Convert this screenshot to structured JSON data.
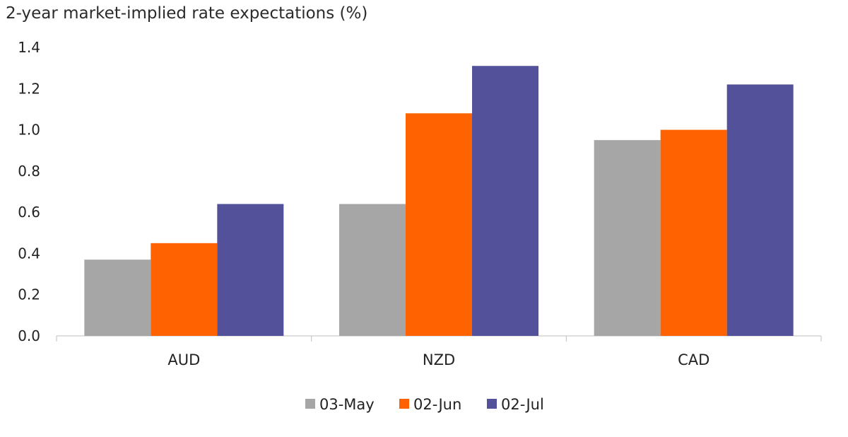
{
  "chart_data": {
    "type": "bar",
    "title": "2-year market-implied rate expectations (%)",
    "xlabel": "",
    "ylabel": "",
    "categories": [
      "AUD",
      "NZD",
      "CAD"
    ],
    "series": [
      {
        "name": "03-May",
        "color": "#a6a6a6",
        "values": [
          0.37,
          0.64,
          0.95
        ]
      },
      {
        "name": "02-Jun",
        "color": "#ff6200",
        "values": [
          0.45,
          1.08,
          1.0
        ]
      },
      {
        "name": "02-Jul",
        "color": "#525199",
        "values": [
          0.64,
          1.31,
          1.22
        ]
      }
    ],
    "ylim": [
      0,
      1.4
    ],
    "yticks": [
      "0.0",
      "0.2",
      "0.4",
      "0.6",
      "0.8",
      "1.0",
      "1.2",
      "1.4"
    ],
    "grid": false,
    "legend_position": "bottom-center"
  }
}
